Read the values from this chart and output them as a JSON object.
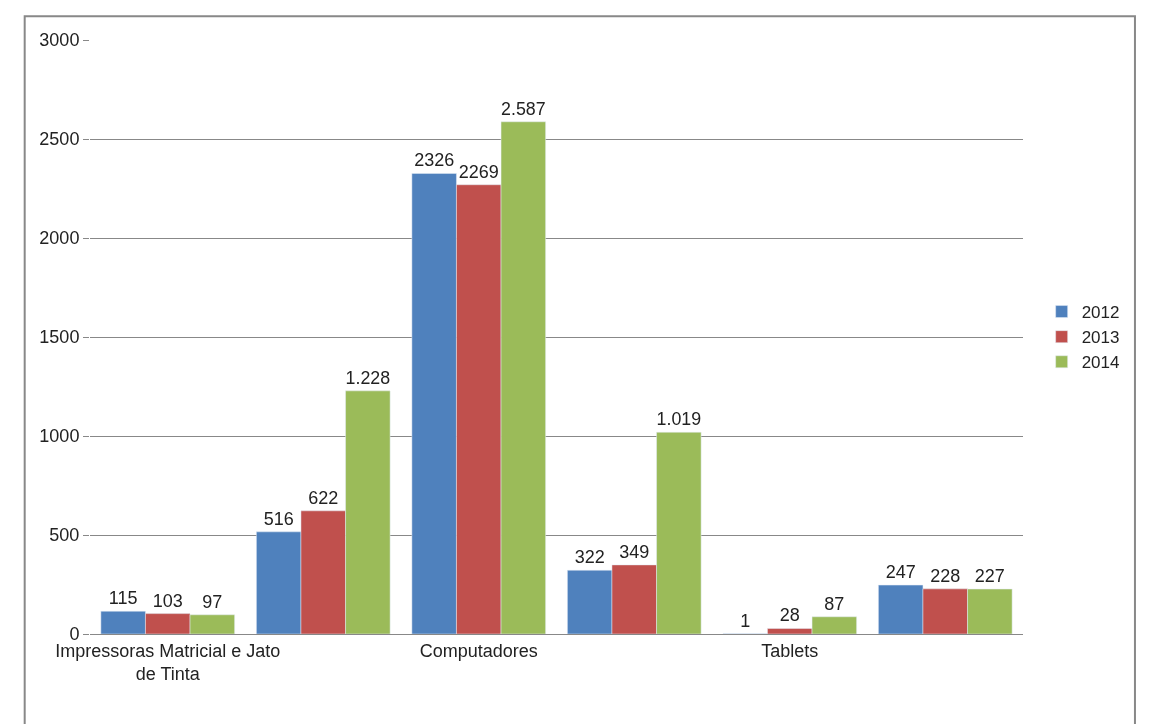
{
  "chart_data": {
    "type": "bar",
    "categories": [
      "Impressoras Matricial e Jato de Tinta",
      null,
      "Computadores",
      null,
      "Tablets",
      null
    ],
    "series": [
      {
        "name": "2012",
        "color": "#4f81bd",
        "values": [
          115,
          516,
          2326,
          322,
          1,
          247
        ],
        "value_labels": [
          "115",
          "516",
          "2326",
          "322",
          "1",
          "247"
        ]
      },
      {
        "name": "2013",
        "color": "#c0504d",
        "values": [
          103,
          622,
          2269,
          349,
          28,
          228
        ],
        "value_labels": [
          "103",
          "622",
          "2269",
          "349",
          "28",
          "228"
        ]
      },
      {
        "name": "2014",
        "color": "#9bbb59",
        "values": [
          97,
          1228,
          2587,
          1019,
          87,
          227
        ],
        "value_labels": [
          "97",
          "1.228",
          "2.587",
          "1.019",
          "87",
          "227"
        ]
      }
    ],
    "ylim": [
      0,
      3000
    ],
    "yticks": [
      0,
      500,
      1000,
      1500,
      2000,
      2500,
      3000
    ],
    "grid": "y",
    "legend": "right"
  }
}
